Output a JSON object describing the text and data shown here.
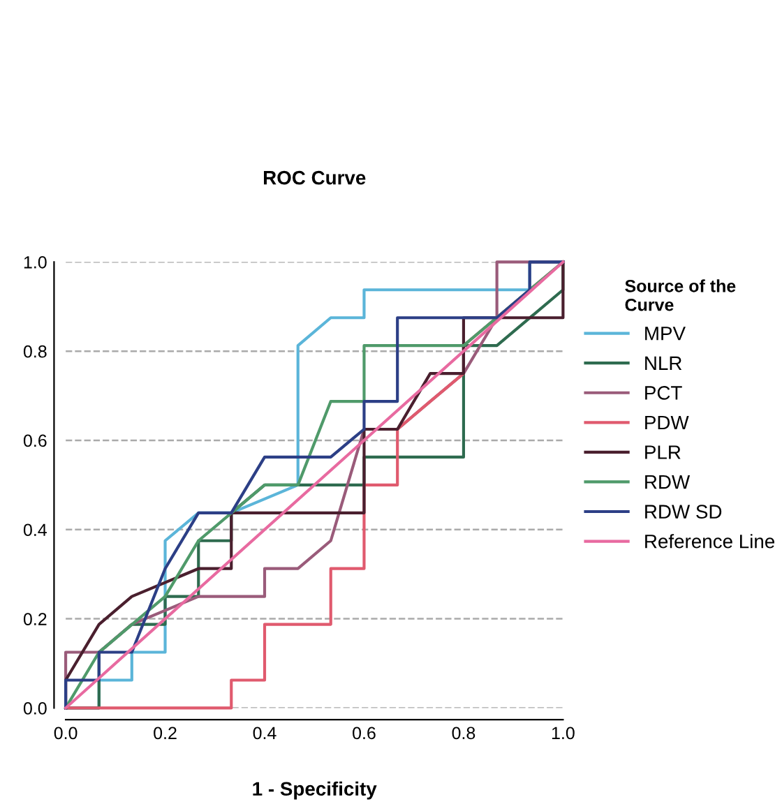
{
  "chart_data": {
    "type": "line",
    "title": "ROC Curve",
    "xlabel": "1 - Specificity",
    "legend_title": "Source of the\nCurve",
    "legend": "right",
    "grid": "y",
    "marker": "none",
    "line_style": "solid",
    "xlim": [
      0,
      1
    ],
    "ylim": [
      0,
      1
    ],
    "xticks": [
      {
        "value": 0,
        "label": "0.0"
      },
      0.2,
      0.4,
      0.6,
      0.8,
      {
        "value": 1,
        "label": "1.0"
      }
    ],
    "yticks": [
      {
        "value": 0,
        "label": "0.0"
      },
      0.2,
      0.4,
      0.6,
      0.8,
      {
        "value": 1,
        "label": "1.0"
      }
    ],
    "series": [
      {
        "name": "MPV",
        "color": "#5bb5d9",
        "x": [
          0,
          0.067,
          0.067,
          0.133,
          0.133,
          0.2,
          0.2,
          0.267,
          0.333,
          0.467,
          0.467,
          0.533,
          0.6,
          0.6,
          0.933,
          0.933,
          1
        ],
        "values": [
          0,
          0,
          0.0625,
          0.0625,
          0.125,
          0.125,
          0.375,
          0.4375,
          0.4375,
          0.5,
          0.8125,
          0.875,
          0.875,
          0.9375,
          0.9375,
          1,
          1
        ]
      },
      {
        "name": "NLR",
        "color": "#2e6b4f",
        "x": [
          0,
          0.067,
          0.067,
          0.133,
          0.2,
          0.2,
          0.267,
          0.267,
          0.333,
          0.333,
          0.4,
          0.6,
          0.6,
          0.8,
          0.8,
          0.867,
          1,
          1
        ],
        "values": [
          0,
          0,
          0.125,
          0.1875,
          0.1875,
          0.25,
          0.25,
          0.375,
          0.375,
          0.4375,
          0.5,
          0.5,
          0.5625,
          0.5625,
          0.8125,
          0.8125,
          0.9375,
          1
        ]
      },
      {
        "name": "PCT",
        "color": "#9a5b7a",
        "x": [
          0,
          0,
          0.067,
          0.133,
          0.267,
          0.333,
          0.4,
          0.4,
          0.467,
          0.533,
          0.6,
          0.667,
          0.733,
          0.8,
          0.867,
          0.867,
          1
        ],
        "values": [
          0,
          0.125,
          0.125,
          0.1875,
          0.25,
          0.25,
          0.25,
          0.3125,
          0.3125,
          0.375,
          0.625,
          0.625,
          0.6875,
          0.75,
          0.875,
          1,
          1
        ]
      },
      {
        "name": "PDW",
        "color": "#e05a6e",
        "x": [
          0,
          0.333,
          0.333,
          0.4,
          0.4,
          0.533,
          0.533,
          0.6,
          0.6,
          0.667,
          0.667,
          0.733,
          0.8,
          0.8,
          0.867,
          0.933,
          1
        ],
        "values": [
          0,
          0,
          0.0625,
          0.0625,
          0.1875,
          0.1875,
          0.3125,
          0.3125,
          0.5,
          0.5,
          0.625,
          0.6875,
          0.75,
          0.8125,
          0.875,
          0.9375,
          1
        ]
      },
      {
        "name": "PLR",
        "color": "#4a1f2e",
        "x": [
          0,
          0,
          0.067,
          0.133,
          0.267,
          0.333,
          0.333,
          0.4,
          0.6,
          0.6,
          0.667,
          0.733,
          0.8,
          0.8,
          1,
          1
        ],
        "values": [
          0,
          0.0625,
          0.1875,
          0.25,
          0.3125,
          0.3125,
          0.4375,
          0.4375,
          0.4375,
          0.625,
          0.625,
          0.75,
          0.75,
          0.875,
          0.875,
          1
        ]
      },
      {
        "name": "RDW",
        "color": "#4f9a6a",
        "x": [
          0,
          0.067,
          0.2,
          0.267,
          0.4,
          0.467,
          0.533,
          0.6,
          0.6,
          0.8,
          0.933,
          1
        ],
        "values": [
          0,
          0.125,
          0.25,
          0.375,
          0.5,
          0.5,
          0.6875,
          0.6875,
          0.8125,
          0.8125,
          0.9375,
          1
        ]
      },
      {
        "name": "RDW SD",
        "color": "#2c3f86",
        "x": [
          0,
          0,
          0.067,
          0.067,
          0.133,
          0.2,
          0.267,
          0.333,
          0.4,
          0.533,
          0.6,
          0.6,
          0.667,
          0.667,
          0.867,
          0.933,
          0.933,
          1
        ],
        "values": [
          0,
          0.0625,
          0.0625,
          0.125,
          0.125,
          0.3125,
          0.4375,
          0.4375,
          0.5625,
          0.5625,
          0.625,
          0.6875,
          0.6875,
          0.875,
          0.875,
          0.9375,
          1,
          1
        ]
      },
      {
        "name": "Reference Line",
        "color": "#e86aa0",
        "x": [
          0,
          1
        ],
        "values": [
          0,
          1
        ]
      }
    ]
  }
}
